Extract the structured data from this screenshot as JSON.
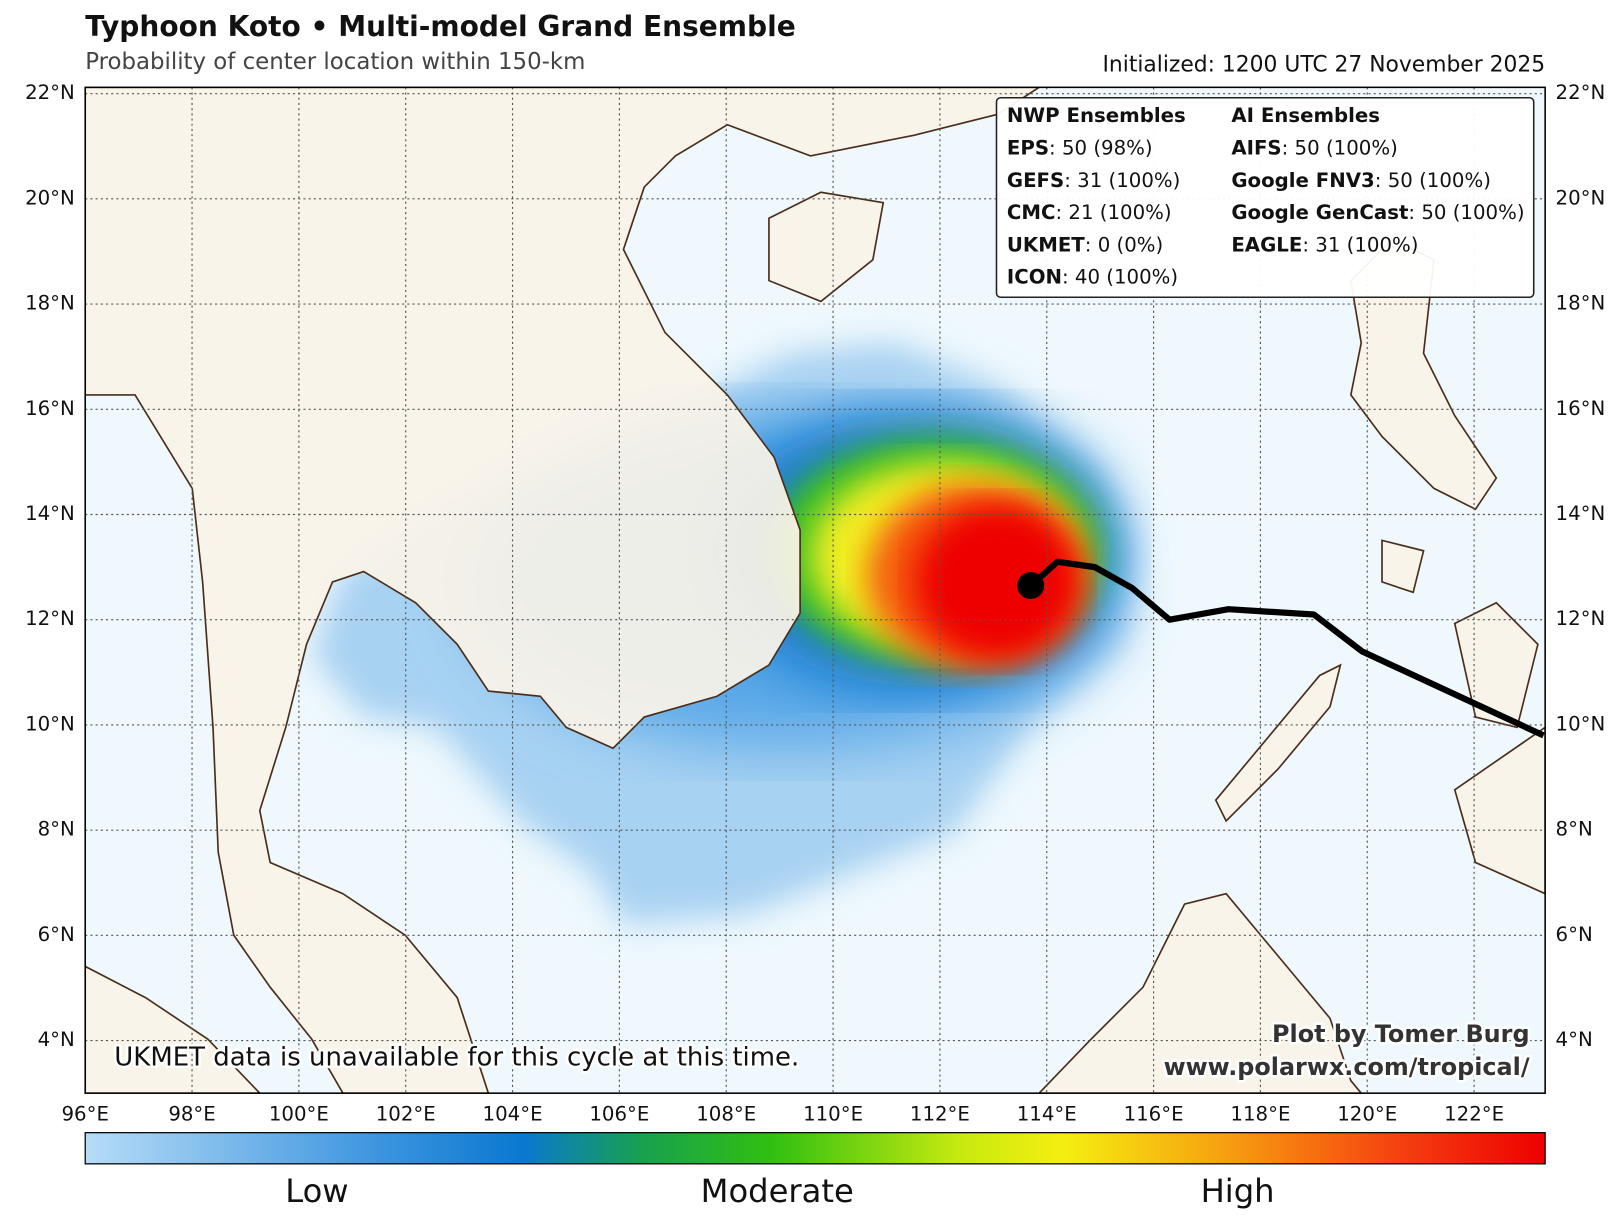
{
  "header": {
    "title": "Typhoon Koto • Multi-model Grand Ensemble",
    "subtitle": "Probability of center location within 150-km",
    "initialized": "Initialized: 1200 UTC 27 November 2025"
  },
  "map": {
    "type": "map",
    "xlim": [
      96,
      123.33
    ],
    "ylim": [
      3,
      22.12
    ],
    "grid": true,
    "xticks": [
      {
        "value": 96,
        "label": "96°E"
      },
      {
        "value": 98,
        "label": "98°E"
      },
      {
        "value": 100,
        "label": "100°E"
      },
      {
        "value": 102,
        "label": "102°E"
      },
      {
        "value": 104,
        "label": "104°E"
      },
      {
        "value": 106,
        "label": "106°E"
      },
      {
        "value": 108,
        "label": "108°E"
      },
      {
        "value": 110,
        "label": "110°E"
      },
      {
        "value": 112,
        "label": "112°E"
      },
      {
        "value": 114,
        "label": "114°E"
      },
      {
        "value": 116,
        "label": "116°E"
      },
      {
        "value": 118,
        "label": "118°E"
      },
      {
        "value": 120,
        "label": "120°E"
      },
      {
        "value": 122,
        "label": "122°E"
      }
    ],
    "yticks": [
      {
        "value": 4,
        "label": "4°N"
      },
      {
        "value": 6,
        "label": "6°N"
      },
      {
        "value": 8,
        "label": "8°N"
      },
      {
        "value": 10,
        "label": "10°N"
      },
      {
        "value": 12,
        "label": "12°N"
      },
      {
        "value": 14,
        "label": "14°N"
      },
      {
        "value": 16,
        "label": "16°N"
      },
      {
        "value": 18,
        "label": "18°N"
      },
      {
        "value": 20,
        "label": "20°N"
      },
      {
        "value": 22,
        "label": "22°N"
      }
    ],
    "track": {
      "color": "#000000",
      "lon": [
        113.7,
        114.2,
        114.9,
        115.6,
        116.3,
        117.4,
        119.0,
        119.9,
        123.3
      ],
      "lat": [
        12.65,
        13.1,
        13.0,
        12.6,
        12.0,
        12.2,
        12.1,
        11.4,
        9.8
      ]
    },
    "current_position": {
      "lon": 113.7,
      "lat": 12.65
    }
  },
  "legend": {
    "nwp_title": "NWP Ensembles",
    "nwp": [
      {
        "name": "EPS",
        "detail": ": 50 (98%)"
      },
      {
        "name": "GEFS",
        "detail": ": 31 (100%)"
      },
      {
        "name": "CMC",
        "detail": ": 21 (100%)"
      },
      {
        "name": "UKMET",
        "detail": ": 0 (0%)"
      },
      {
        "name": "ICON",
        "detail": ": 40 (100%)"
      }
    ],
    "ai_title": "AI Ensembles",
    "ai": [
      {
        "name": "AIFS",
        "detail": ": 50 (100%)"
      },
      {
        "name": "Google FNV3",
        "detail": ": 50 (100%)"
      },
      {
        "name": "Google GenCast",
        "detail": ": 50 (100%)"
      },
      {
        "name": "EAGLE",
        "detail": ": 31 (100%)"
      }
    ]
  },
  "colorbar": {
    "labels": [
      "Low",
      "Moderate",
      "High"
    ]
  },
  "notes": {
    "ukmet": "UKMET data is unavailable for this cycle at this time.",
    "credit": "Plot by Tomer Burg",
    "url": "www.polarwx.com/tropical/"
  }
}
